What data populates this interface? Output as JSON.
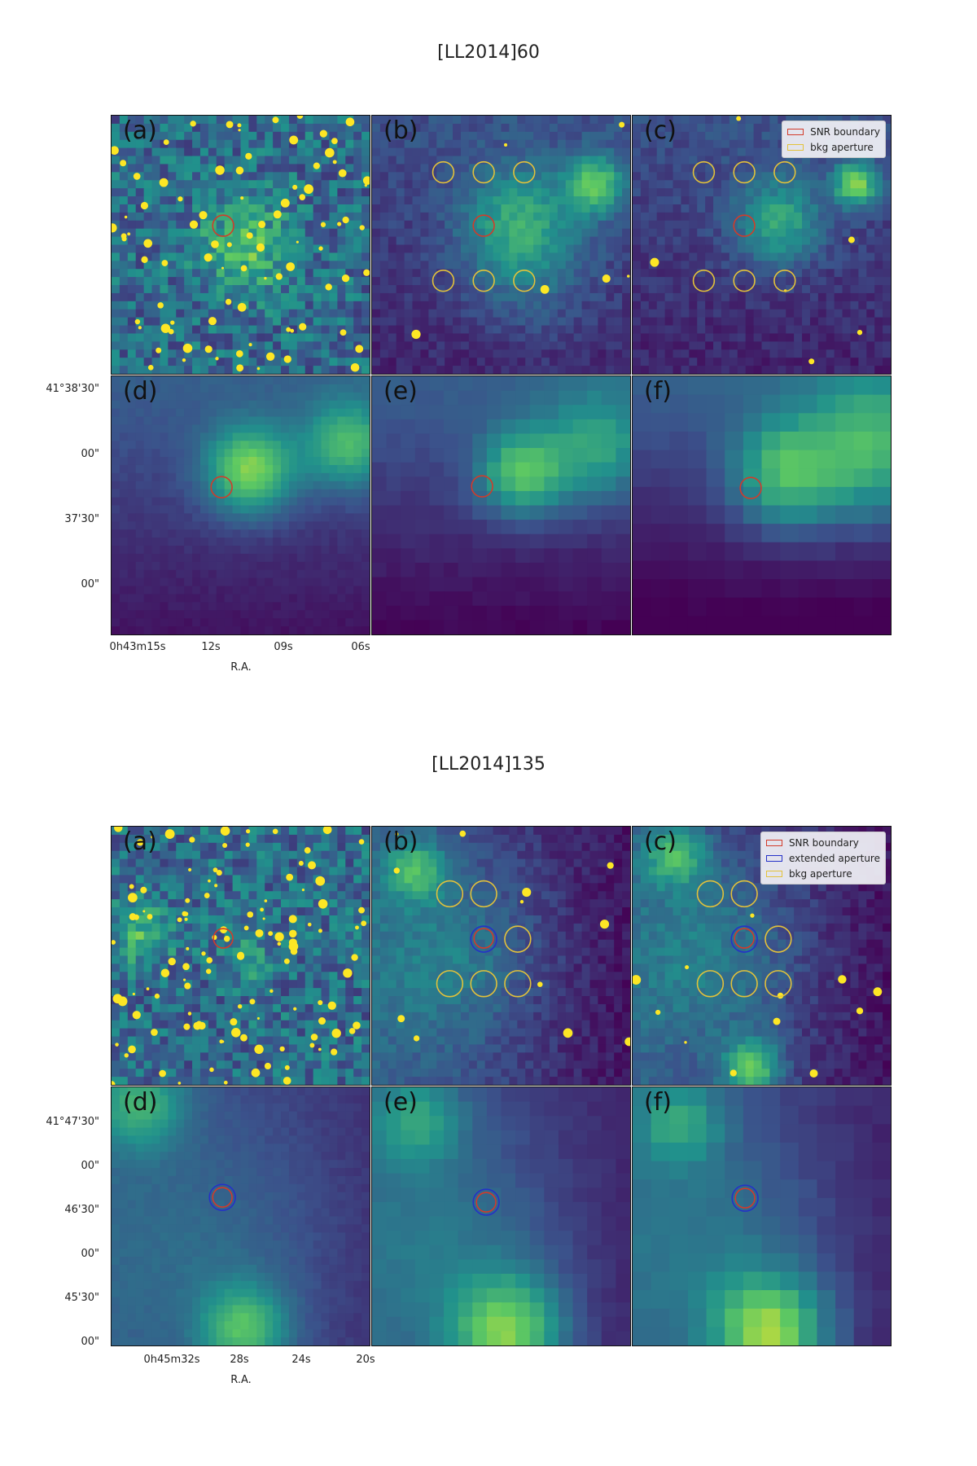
{
  "figures": [
    {
      "title": "[LL2014]60",
      "ra_label": "R.A.",
      "y_ticks": [
        "41°38'30\"",
        "00\"",
        "37'30\"",
        "00\""
      ],
      "x_ticks": [
        "0h43m15s",
        "12s",
        "09s",
        "06s"
      ],
      "panels": [
        {
          "label": "(a)",
          "legend": [
            "SNR boundary",
            "bkg aperture"
          ]
        },
        {
          "label": "(b)"
        },
        {
          "label": "(c)",
          "legend": [
            "SNR boundary",
            "bkg aperture"
          ]
        },
        {
          "label": "(d)"
        },
        {
          "label": "(e)"
        },
        {
          "label": "(f)"
        }
      ]
    },
    {
      "title": "[LL2014]135",
      "ra_label": "R.A.",
      "y_ticks": [
        "41°47'30\"",
        "00\"",
        "46'30\"",
        "00\"",
        "45'30\"",
        "00\""
      ],
      "x_ticks": [
        "0h45m32s",
        "28s",
        "24s",
        "20s"
      ],
      "panels": [
        {
          "label": "(a)"
        },
        {
          "label": "(b)"
        },
        {
          "label": "(c)",
          "legend": [
            "SNR boundary",
            "extended aperture",
            "bkg aperture"
          ]
        },
        {
          "label": "(d)"
        },
        {
          "label": "(e)"
        },
        {
          "label": "(f)"
        }
      ]
    }
  ],
  "colors": {
    "snr": "#d23b2a",
    "extended": "#2431c8",
    "bkg": "#e3c23a",
    "cmap_low": "#440154",
    "cmap_mid": "#21918c",
    "cmap_high": "#fde725"
  }
}
